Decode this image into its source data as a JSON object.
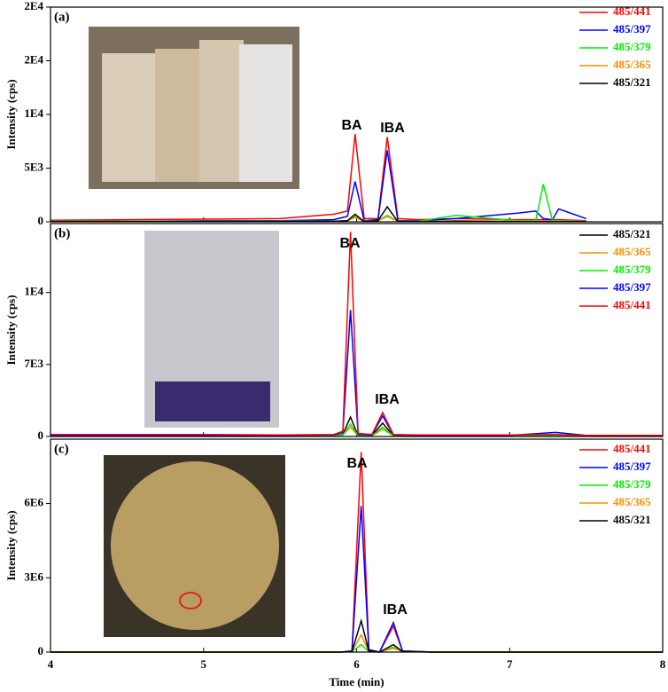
{
  "chart_data": [
    {
      "type": "line",
      "panel_label": "(a)",
      "ylabel": "Intensity (cps)",
      "x": [
        4,
        4.5,
        5,
        5.5,
        5.85,
        5.94,
        5.99,
        6.05,
        6.14,
        6.2,
        6.27,
        6.4,
        6.65,
        7.05,
        7.17,
        7.22,
        7.28,
        7.32,
        7.5
      ],
      "series": [
        {
          "name": "485/441",
          "color": "#ff0000",
          "values": [
            150,
            200,
            250,
            300,
            700,
            1000,
            8170,
            300,
            300,
            7900,
            300,
            200,
            300,
            200,
            200,
            200,
            200,
            200,
            100
          ]
        },
        {
          "name": "485/397",
          "color": "#0000ff",
          "values": [
            50,
            50,
            100,
            100,
            200,
            500,
            3750,
            100,
            200,
            6670,
            100,
            100,
            300,
            800,
            1000,
            300,
            200,
            1200,
            300
          ]
        },
        {
          "name": "485/379",
          "color": "#00ee00",
          "values": [
            50,
            50,
            50,
            50,
            50,
            100,
            500,
            50,
            100,
            600,
            50,
            50,
            600,
            100,
            100,
            3500,
            100,
            100,
            50
          ]
        },
        {
          "name": "485/365",
          "color": "#ff8c00",
          "values": [
            30,
            30,
            30,
            30,
            50,
            100,
            400,
            30,
            80,
            500,
            30,
            30,
            100,
            50,
            50,
            50,
            50,
            50,
            30
          ]
        },
        {
          "name": "485/321",
          "color": "#000000",
          "values": [
            20,
            20,
            20,
            20,
            50,
            100,
            700,
            20,
            100,
            1400,
            20,
            20,
            50,
            20,
            20,
            20,
            20,
            20,
            20
          ]
        }
      ],
      "annotations": [
        "BA",
        "IBA"
      ],
      "xlim": [
        4,
        8
      ],
      "xticks": [
        4,
        5,
        6,
        7,
        8
      ],
      "ylim": [
        0,
        20000
      ],
      "yticks": [
        0,
        {
          "value": 5000,
          "label": "5E3"
        },
        {
          "value": 10000,
          "label": "1E4"
        },
        {
          "value": 15000,
          "label": "2E4"
        },
        {
          "value": 20000,
          "label": "2E4"
        }
      ]
    },
    {
      "type": "line",
      "panel_label": "(b)",
      "ylabel": "Intensity (cps)",
      "x": [
        4,
        4.5,
        5,
        5.5,
        5.85,
        5.91,
        5.96,
        6.01,
        6.1,
        6.17,
        6.24,
        6.4,
        7.0,
        7.3,
        7.5,
        8
      ],
      "series": [
        {
          "name": "485/321",
          "color": "#000000",
          "values": [
            50,
            50,
            50,
            50,
            80,
            200,
            1900,
            80,
            80,
            1300,
            80,
            50,
            50,
            50,
            50,
            50
          ]
        },
        {
          "name": "485/365",
          "color": "#ff8c00",
          "values": [
            60,
            60,
            60,
            60,
            80,
            150,
            900,
            60,
            60,
            700,
            60,
            60,
            60,
            60,
            60,
            60
          ]
        },
        {
          "name": "485/379",
          "color": "#00ee00",
          "values": [
            70,
            70,
            70,
            70,
            90,
            150,
            1200,
            70,
            70,
            900,
            70,
            70,
            70,
            80,
            70,
            70
          ]
        },
        {
          "name": "485/397",
          "color": "#0000ff",
          "values": [
            100,
            100,
            100,
            100,
            150,
            400,
            12300,
            200,
            150,
            2000,
            150,
            100,
            100,
            400,
            100,
            50
          ]
        },
        {
          "name": "485/441",
          "color": "#ff0000",
          "values": [
            200,
            200,
            200,
            150,
            200,
            500,
            19900,
            300,
            200,
            2330,
            200,
            150,
            150,
            200,
            100,
            100
          ]
        }
      ],
      "annotations": [
        "BA",
        "IBA"
      ],
      "xlim": [
        4,
        8
      ],
      "xticks": [
        4,
        5,
        6,
        7,
        8
      ],
      "ylim": [
        0,
        20700
      ],
      "yticks": [
        0,
        {
          "value": 7000,
          "label": "7E3"
        },
        {
          "value": 14000,
          "label": "1E4"
        }
      ]
    },
    {
      "type": "line",
      "panel_label": "(c)",
      "ylabel": "Intensity (cps)",
      "xlabel": "Time (min)",
      "x": [
        4,
        5,
        5.9,
        5.97,
        6.03,
        6.08,
        6.15,
        6.24,
        6.3,
        6.5,
        8
      ],
      "series": [
        {
          "name": "485/441",
          "color": "#ff0000",
          "values": [
            0,
            0,
            0,
            50000,
            8080000,
            100000,
            0,
            1050000,
            50000,
            0,
            0
          ]
        },
        {
          "name": "485/397",
          "color": "#0000ff",
          "values": [
            0,
            0,
            0,
            50000,
            5900000,
            100000,
            0,
            1190000,
            50000,
            0,
            0
          ]
        },
        {
          "name": "485/379",
          "color": "#00ee00",
          "values": [
            0,
            0,
            0,
            20000,
            300000,
            20000,
            0,
            200000,
            20000,
            0,
            0
          ]
        },
        {
          "name": "485/365",
          "color": "#ff8c00",
          "values": [
            0,
            0,
            0,
            20000,
            700000,
            30000,
            0,
            150000,
            20000,
            0,
            0
          ]
        },
        {
          "name": "485/321",
          "color": "#000000",
          "values": [
            0,
            0,
            0,
            30000,
            1260000,
            40000,
            0,
            300000,
            20000,
            0,
            0
          ]
        }
      ],
      "annotations": [
        "BA",
        "IBA"
      ],
      "xlim": [
        4,
        8
      ],
      "xticks": [
        4,
        5,
        6,
        7,
        8
      ],
      "ylim": [
        0,
        8600000
      ],
      "yticks": [
        0,
        {
          "value": 3000000,
          "label": "3E6"
        },
        {
          "value": 6000000,
          "label": "6E6"
        }
      ]
    }
  ]
}
